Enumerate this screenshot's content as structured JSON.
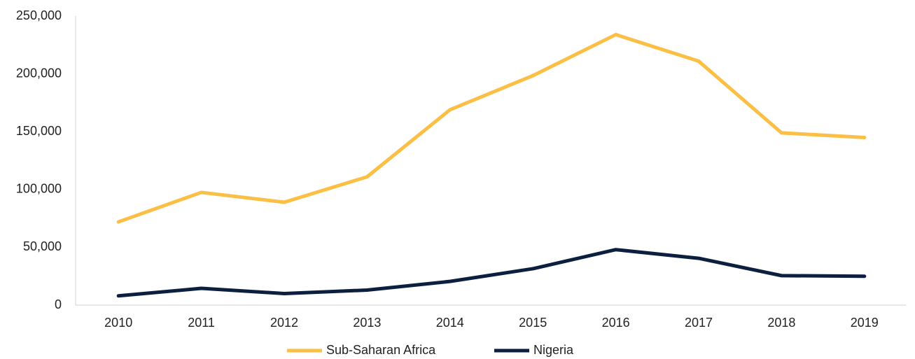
{
  "chart_data": {
    "type": "line",
    "categories": [
      "2010",
      "2011",
      "2012",
      "2013",
      "2014",
      "2015",
      "2016",
      "2017",
      "2018",
      "2019"
    ],
    "series": [
      {
        "name": "Sub-Saharan Africa",
        "color": "#fbbf45",
        "values": [
          72000,
          97500,
          89000,
          111000,
          169000,
          198500,
          234000,
          211000,
          149000,
          145000
        ]
      },
      {
        "name": "Nigeria",
        "color": "#0c1f3f",
        "values": [
          8000,
          14500,
          10000,
          13000,
          20500,
          31500,
          48000,
          40500,
          25500,
          25000
        ]
      }
    ],
    "ylim": [
      0,
      250000
    ],
    "yticks": [
      0,
      {
        "value": 50000,
        "label": "50,000"
      },
      {
        "value": 100000,
        "label": "100,000"
      },
      {
        "value": 150000,
        "label": "150,000"
      },
      {
        "value": 200000,
        "label": "200,000"
      },
      {
        "value": 250000,
        "label": "250,000"
      }
    ],
    "grid": false,
    "legend": "bottom"
  }
}
